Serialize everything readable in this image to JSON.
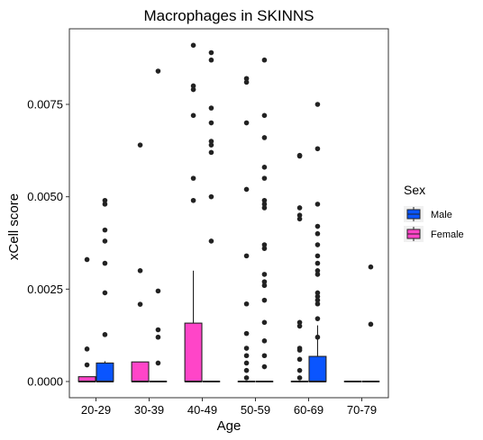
{
  "chart_data": {
    "type": "box",
    "title": "Macrophages in SKINNS",
    "xlabel": "Age",
    "ylabel": "xCell score",
    "categories": [
      "20-29",
      "30-39",
      "40-49",
      "50-59",
      "60-69",
      "70-79"
    ],
    "y_ticks": [
      0.0,
      0.0025,
      0.005,
      0.0075
    ],
    "y_tick_labels": [
      "0.0000",
      "0.0025",
      "0.0050",
      "0.0075"
    ],
    "ylim": [
      -0.00045,
      0.0094
    ],
    "grid": false,
    "legend": {
      "title": "Sex",
      "placement": "right",
      "entries": [
        {
          "label": "Male",
          "color": "#0a55ff"
        },
        {
          "label": "Female",
          "color": "#ff45c8"
        }
      ]
    },
    "series": [
      {
        "name": "Female",
        "color": "#ff45c8",
        "boxes": [
          {
            "category": "20-29",
            "q1": 0.0,
            "median": 0.0,
            "q3": 0.00013,
            "whisker_low": 0.0,
            "whisker_high": 0.00013,
            "outliers": [
              0.0033,
              0.00088,
              0.00045
            ]
          },
          {
            "category": "30-39",
            "q1": 0.0,
            "median": 0.0,
            "q3": 0.00053,
            "whisker_low": 0.0,
            "whisker_high": 0.00053,
            "outliers": [
              0.0064,
              0.003,
              0.00209
            ]
          },
          {
            "category": "40-49",
            "q1": 0.0,
            "median": 0.0,
            "q3": 0.00158,
            "whisker_low": 0.0,
            "whisker_high": 0.003,
            "outliers": [
              0.0091,
              0.008,
              0.0079,
              0.0072,
              0.0055,
              0.0049
            ]
          },
          {
            "category": "50-59",
            "q1": 0.0,
            "median": 0.0,
            "q3": 0.0,
            "whisker_low": 0.0,
            "whisker_high": 0.0,
            "outliers": [
              0.0082,
              0.0081,
              0.007,
              0.0052,
              0.0034,
              0.0021,
              0.0013,
              0.0009,
              0.0007,
              0.0005,
              0.0003,
              0.0001
            ]
          },
          {
            "category": "60-69",
            "q1": 0.0,
            "median": 0.0,
            "q3": 0.0,
            "whisker_low": 0.0,
            "whisker_high": 0.0,
            "outliers": [
              0.0061,
              0.00612,
              0.0047,
              0.0044,
              0.0045,
              0.0016,
              0.0015,
              0.0009,
              0.00085,
              0.0006,
              0.0003,
              0.0001
            ]
          },
          {
            "category": "70-79",
            "q1": 0.0,
            "median": 0.0,
            "q3": 0.0,
            "whisker_low": 0.0,
            "whisker_high": 0.0,
            "outliers": []
          }
        ]
      },
      {
        "name": "Male",
        "color": "#0a55ff",
        "boxes": [
          {
            "category": "20-29",
            "q1": 0.0,
            "median": 0.0,
            "q3": 0.0005,
            "whisker_low": 0.0,
            "whisker_high": 0.00055,
            "outliers": [
              0.0049,
              0.0048,
              0.0041,
              0.0038,
              0.0032,
              0.0024,
              0.00127
            ]
          },
          {
            "category": "30-39",
            "q1": 0.0,
            "median": 0.0,
            "q3": 0.0,
            "whisker_low": 0.0,
            "whisker_high": 0.0,
            "outliers": [
              0.0084,
              0.00245,
              0.0014,
              0.0012,
              0.0005
            ]
          },
          {
            "category": "40-49",
            "q1": 0.0,
            "median": 0.0,
            "q3": 0.0,
            "whisker_low": 0.0,
            "whisker_high": 0.0,
            "outliers": [
              0.0089,
              0.0087,
              0.0074,
              0.007,
              0.0065,
              0.0064,
              0.0062,
              0.005,
              0.0038
            ]
          },
          {
            "category": "50-59",
            "q1": 0.0,
            "median": 0.0,
            "q3": 0.0,
            "whisker_low": 0.0,
            "whisker_high": 0.0,
            "outliers": [
              0.0087,
              0.0072,
              0.0066,
              0.0058,
              0.0055,
              0.0049,
              0.0048,
              0.0047,
              0.0037,
              0.0036,
              0.0029,
              0.0027,
              0.0026,
              0.0022,
              0.0016,
              0.0011,
              0.0007,
              0.0004
            ]
          },
          {
            "category": "60-69",
            "q1": 0.0,
            "median": 0.0,
            "q3": 0.00068,
            "whisker_low": 0.0,
            "whisker_high": 0.00152,
            "outliers": [
              0.0075,
              0.0063,
              0.0048,
              0.0042,
              0.004,
              0.0037,
              0.0034,
              0.0032,
              0.003,
              0.0029,
              0.0024,
              0.0023,
              0.0022,
              0.0021,
              0.0017,
              0.0012
            ]
          },
          {
            "category": "70-79",
            "q1": 0.0,
            "median": 0.0,
            "q3": 0.0,
            "whisker_low": 0.0,
            "whisker_high": 0.0,
            "outliers": [
              0.0031,
              0.00155
            ]
          }
        ]
      }
    ]
  }
}
